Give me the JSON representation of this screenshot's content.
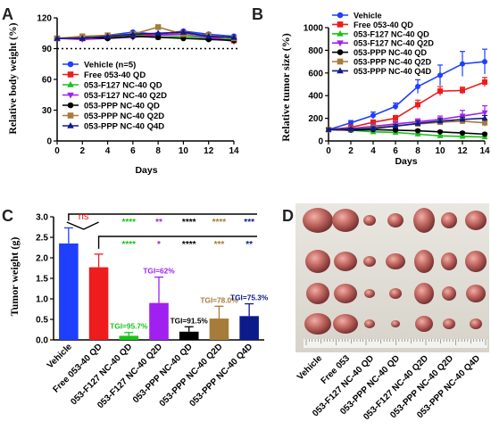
{
  "panels": {
    "a": "A",
    "b": "B",
    "c": "C",
    "d": "D"
  },
  "colors": {
    "vehicle": "#1f3fff",
    "free": "#ee1c1c",
    "f127_qd": "#18c418",
    "f127_q2d": "#a020f0",
    "ppp_qd": "#000000",
    "ppp_q2d": "#a67c3a",
    "ppp_q4d": "#0d1a8a"
  },
  "chart_data": [
    {
      "type": "line",
      "panel": "A",
      "xlabel": "Days",
      "ylabel": "Relative body weight (%)",
      "x_ticks": [
        0,
        2,
        4,
        6,
        8,
        10,
        12,
        14
      ],
      "y_ticks": [
        0,
        30,
        60,
        90,
        120
      ],
      "xlim": [
        0,
        14
      ],
      "ylim": [
        0,
        120
      ],
      "reference_line": 90,
      "legend_position": "bottom-left",
      "series": [
        {
          "name": "Vehicle (n=5)",
          "color": "vehicle",
          "marker": "circle",
          "x": [
            0,
            2,
            4,
            6,
            8,
            10,
            12,
            14
          ],
          "y": [
            100,
            100,
            103,
            106,
            104,
            107,
            104,
            102
          ]
        },
        {
          "name": "Free 053-40 QD",
          "color": "free",
          "marker": "square",
          "x": [
            0,
            2,
            4,
            6,
            8,
            10,
            12,
            14
          ],
          "y": [
            100,
            100,
            101,
            104,
            103,
            105,
            102,
            98
          ]
        },
        {
          "name": "053-F127 NC-40 QD",
          "color": "f127_qd",
          "marker": "triangle",
          "x": [
            0,
            2,
            4,
            6,
            8,
            10,
            12,
            14
          ],
          "y": [
            100,
            101,
            102,
            103,
            101,
            102,
            100,
            99
          ]
        },
        {
          "name": "053-F127 NC-40 Q2D",
          "color": "f127_q2d",
          "marker": "triangle-down",
          "x": [
            0,
            2,
            4,
            6,
            8,
            10,
            12,
            14
          ],
          "y": [
            100,
            99,
            100,
            101,
            103,
            104,
            101,
            97
          ]
        },
        {
          "name": "053-PPP NC-40 QD",
          "color": "ppp_qd",
          "marker": "circle",
          "x": [
            0,
            2,
            4,
            6,
            8,
            10,
            12,
            14
          ],
          "y": [
            100,
            101,
            100,
            102,
            101,
            100,
            99,
            98
          ]
        },
        {
          "name": "053-PPP NC-40 Q2D",
          "color": "ppp_q2d",
          "marker": "square",
          "x": [
            0,
            2,
            4,
            6,
            8,
            10,
            12,
            14
          ],
          "y": [
            100,
            102,
            103,
            104,
            111,
            104,
            103,
            100
          ]
        },
        {
          "name": "053-PPP NC-40 Q4D",
          "color": "ppp_q4d",
          "marker": "triangle",
          "x": [
            0,
            2,
            4,
            6,
            8,
            10,
            12,
            14
          ],
          "y": [
            100,
            100,
            102,
            104,
            105,
            106,
            102,
            101
          ]
        }
      ]
    },
    {
      "type": "line",
      "panel": "B",
      "xlabel": "Days",
      "ylabel": "Relative tumor size (%)",
      "x_ticks": [
        0,
        2,
        4,
        6,
        8,
        10,
        12,
        14
      ],
      "y_ticks": [
        0,
        200,
        400,
        600,
        800,
        1000
      ],
      "xlim": [
        0,
        14
      ],
      "ylim": [
        0,
        1000
      ],
      "legend_position": "top-left",
      "series": [
        {
          "name": "Vehicle",
          "color": "vehicle",
          "marker": "circle",
          "x": [
            0,
            2,
            4,
            6,
            8,
            10,
            12,
            14
          ],
          "y": [
            100,
            160,
            225,
            305,
            480,
            580,
            680,
            700
          ],
          "err": [
            10,
            20,
            30,
            30,
            60,
            90,
            110,
            110
          ]
        },
        {
          "name": "Free 053-40 QD",
          "color": "free",
          "marker": "square",
          "x": [
            0,
            2,
            4,
            6,
            8,
            10,
            12,
            14
          ],
          "y": [
            100,
            120,
            165,
            200,
            320,
            440,
            445,
            520
          ],
          "err": [
            10,
            15,
            20,
            25,
            40,
            40,
            30,
            40
          ]
        },
        {
          "name": "053-F127 NC-40 QD",
          "color": "f127_qd",
          "marker": "triangle",
          "x": [
            0,
            2,
            4,
            6,
            8,
            10,
            12,
            14
          ],
          "y": [
            100,
            95,
            80,
            75,
            60,
            45,
            40,
            35
          ],
          "err": [
            5,
            5,
            5,
            5,
            5,
            5,
            5,
            5
          ]
        },
        {
          "name": "053-F127 NC-40 Q2D",
          "color": "f127_q2d",
          "marker": "triangle-down",
          "x": [
            0,
            2,
            4,
            6,
            8,
            10,
            12,
            14
          ],
          "y": [
            100,
            110,
            130,
            150,
            170,
            190,
            220,
            250
          ],
          "err": [
            10,
            15,
            20,
            20,
            25,
            30,
            50,
            60
          ]
        },
        {
          "name": "053-PPP NC-40 QD",
          "color": "ppp_qd",
          "marker": "circle",
          "x": [
            0,
            2,
            4,
            6,
            8,
            10,
            12,
            14
          ],
          "y": [
            100,
            95,
            100,
            95,
            90,
            80,
            70,
            60
          ],
          "err": [
            5,
            10,
            10,
            10,
            10,
            10,
            10,
            10
          ]
        },
        {
          "name": "053-PPP NC-40 Q2D",
          "color": "ppp_q2d",
          "marker": "square",
          "x": [
            0,
            2,
            4,
            6,
            8,
            10,
            12,
            14
          ],
          "y": [
            100,
            105,
            120,
            135,
            150,
            165,
            175,
            160
          ],
          "err": [
            10,
            10,
            15,
            15,
            20,
            20,
            25,
            30
          ]
        },
        {
          "name": "053-PPP NC-40 Q4D",
          "color": "ppp_q4d",
          "marker": "triangle",
          "x": [
            0,
            2,
            4,
            6,
            8,
            10,
            12,
            14
          ],
          "y": [
            100,
            105,
            110,
            130,
            155,
            175,
            190,
            200
          ],
          "err": [
            10,
            10,
            15,
            15,
            20,
            20,
            20,
            25
          ]
        }
      ]
    },
    {
      "type": "bar",
      "panel": "C",
      "xlabel": "",
      "ylabel": "Tumor weight (g)",
      "y_ticks": [
        0.0,
        0.5,
        1.0,
        1.5,
        2.0,
        2.5,
        3.0
      ],
      "y_tick_labels": [
        "0.0",
        "0.5",
        "1.0",
        "1.5",
        "2.0",
        "2.5",
        "3.0"
      ],
      "ylim": [
        0,
        3.0
      ],
      "categories": [
        "Vehicle",
        "Free 053-40 QD",
        "053-F127 NC-40 QD",
        "053-F127 NC-40 Q2D",
        "053-PPP NC-40 QD",
        "053-PPP NC-40 Q2D",
        "053-PPP NC-40 Q4D"
      ],
      "values": [
        2.35,
        1.77,
        0.1,
        0.9,
        0.2,
        0.52,
        0.58
      ],
      "errors": [
        0.38,
        0.32,
        0.08,
        0.63,
        0.12,
        0.3,
        0.3
      ],
      "bar_colors": [
        "vehicle",
        "free",
        "f127_qd",
        "f127_q2d",
        "ppp_qd",
        "ppp_q2d",
        "ppp_q4d"
      ],
      "tgi_labels": [
        "",
        "",
        "TGI=95.7%",
        "TGI=62%",
        "TGI=91.5%",
        "TGI=78.0%",
        "TGI=75.3%"
      ],
      "significance": {
        "ns_label": "ns",
        "vs_vehicle": [
          "****",
          "**",
          "****",
          "****",
          "***"
        ],
        "vs_free": [
          "****",
          "*",
          "****",
          "***",
          "**"
        ]
      }
    }
  ],
  "photo": {
    "labels": [
      "Vehicle",
      "Free 053",
      "053-F127 NC-40 QD",
      "053-PPP NC-40 QD",
      "053-F127 NC-40 Q2D",
      "053-PPP NC-40 Q2D",
      "053-PPP NC-40 Q4D"
    ]
  }
}
